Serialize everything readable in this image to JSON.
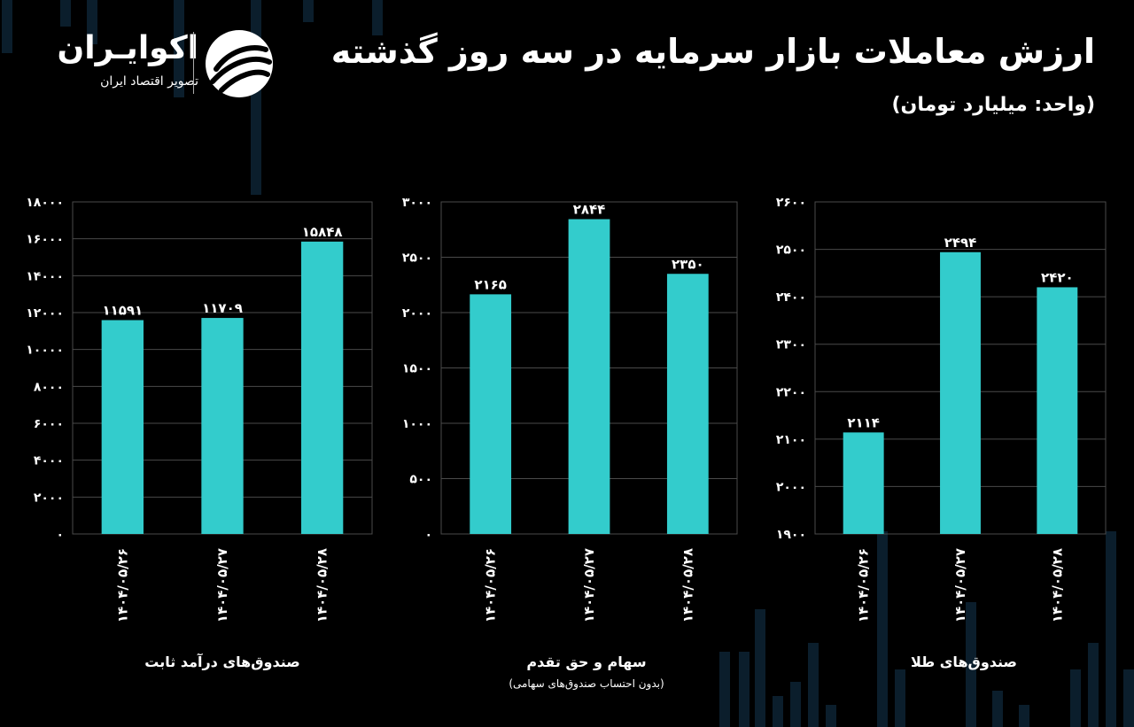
{
  "header": {
    "title": "ارزش معاملات بازار سرمایه در سه روز گذشته",
    "unit": "(واحد: میلیارد تومان)"
  },
  "brand": {
    "name": "اکوایـران",
    "tagline": "تصویر اقتصاد ایران",
    "logo_icon": "ekoiran-swirl-logo-icon"
  },
  "colors": {
    "bar": "#33cccc",
    "grid": "#4a4a4a",
    "background": "#000000"
  },
  "chart_data": [
    {
      "type": "bar",
      "title": "صندوق‌های درآمد ثابت",
      "note": "",
      "categories": [
        "۱۴۰۴/۰۵/۲۶",
        "۱۴۰۴/۰۵/۲۷",
        "۱۴۰۴/۰۵/۲۸"
      ],
      "values": [
        11591,
        11709,
        15848
      ],
      "value_labels": [
        "۱۱۵۹۱",
        "۱۱۷۰۹",
        "۱۵۸۴۸"
      ],
      "ylim": [
        0,
        18000
      ],
      "yticks": [
        0,
        2000,
        4000,
        6000,
        8000,
        10000,
        12000,
        14000,
        16000,
        18000
      ],
      "ytick_labels": [
        "۰",
        "۲۰۰۰",
        "۴۰۰۰",
        "۶۰۰۰",
        "۸۰۰۰",
        "۱۰۰۰۰",
        "۱۲۰۰۰",
        "۱۴۰۰۰",
        "۱۶۰۰۰",
        "۱۸۰۰۰"
      ],
      "grid": true
    },
    {
      "type": "bar",
      "title": "سهام و حق تقدم",
      "note": "(بدون احتساب صندوق‌های سهامی)",
      "categories": [
        "۱۴۰۴/۰۵/۲۶",
        "۱۴۰۴/۰۵/۲۷",
        "۱۴۰۴/۰۵/۲۸"
      ],
      "values": [
        2165,
        2844,
        2350
      ],
      "value_labels": [
        "۲۱۶۵",
        "۲۸۴۴",
        "۲۳۵۰"
      ],
      "ylim": [
        0,
        3000
      ],
      "yticks": [
        0,
        500,
        1000,
        1500,
        2000,
        2500,
        3000
      ],
      "ytick_labels": [
        "۰",
        "۵۰۰",
        "۱۰۰۰",
        "۱۵۰۰",
        "۲۰۰۰",
        "۲۵۰۰",
        "۳۰۰۰"
      ],
      "grid": true
    },
    {
      "type": "bar",
      "title": "صندوق‌های طلا",
      "note": "",
      "categories": [
        "۱۴۰۴/۰۵/۲۶",
        "۱۴۰۴/۰۵/۲۷",
        "۱۴۰۴/۰۵/۲۸"
      ],
      "values": [
        2114,
        2494,
        2420
      ],
      "value_labels": [
        "۲۱۱۴",
        "۲۴۹۴",
        "۲۴۲۰"
      ],
      "ylim": [
        1900,
        2600
      ],
      "yticks": [
        1900,
        2000,
        2100,
        2200,
        2300,
        2400,
        2500,
        2600
      ],
      "ytick_labels": [
        "۱۹۰۰",
        "۲۰۰۰",
        "۲۱۰۰",
        "۲۲۰۰",
        "۲۳۰۰",
        "۲۴۰۰",
        "۲۵۰۰",
        "۲۶۰۰"
      ],
      "grid": true
    }
  ]
}
